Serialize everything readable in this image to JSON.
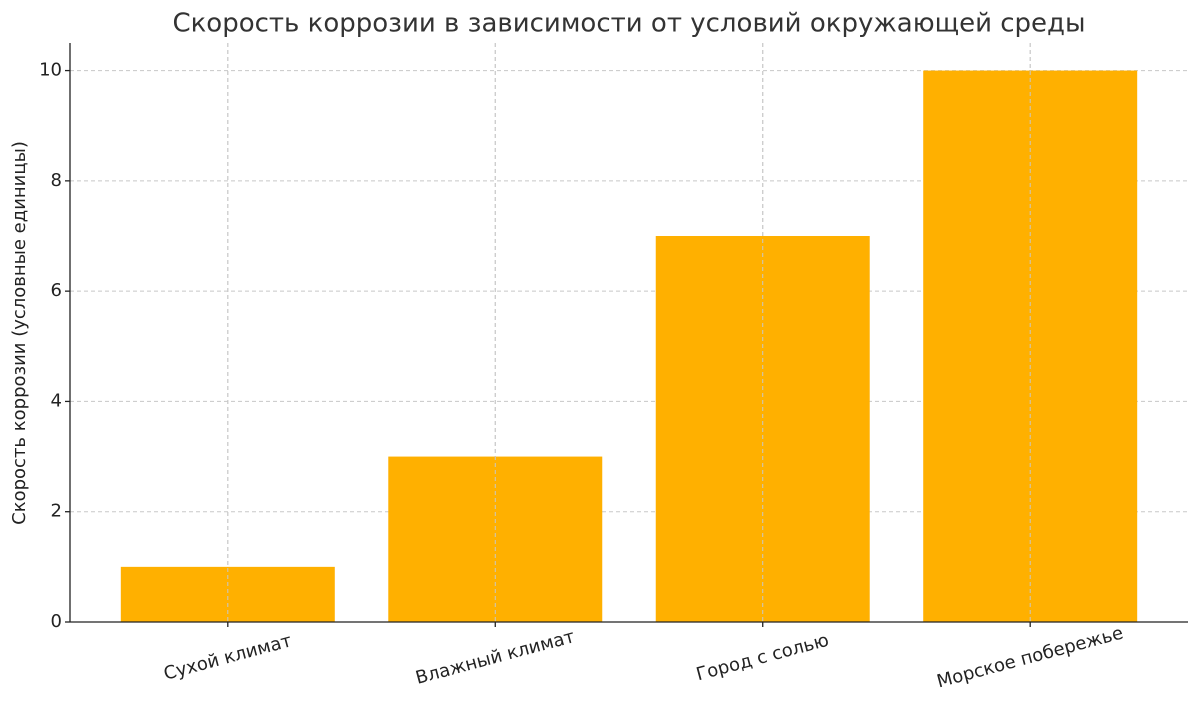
{
  "chart_data": {
    "type": "bar",
    "title": "Скорость коррозии в зависимости от условий окружающей среды",
    "y_label": "Скорость коррозии (условные единицы)",
    "categories": [
      "Сухой климат",
      "Влажный климат",
      "Город с солью",
      "Морское побережье"
    ],
    "values": [
      1,
      3,
      7,
      10
    ],
    "color": "#ffb000",
    "ylim": [
      0,
      10.5
    ],
    "yticks": [
      0,
      2,
      4,
      6,
      8,
      10
    ],
    "grid": true
  }
}
